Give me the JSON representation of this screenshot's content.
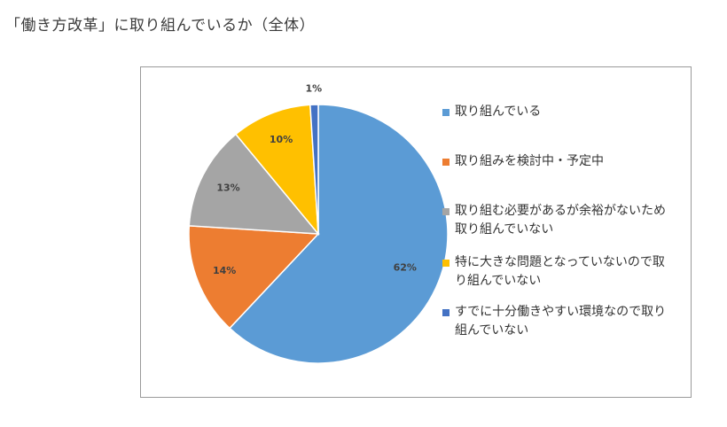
{
  "page": {
    "title": "「働き方改革」に取り組んでいるか（全体）"
  },
  "chart_data": {
    "type": "pie",
    "title": "",
    "categories": [
      "取り組んでいる",
      "取り組みを検討中・予定中",
      "取り組む必要があるが余裕がないため取り組んでいない",
      "特に大きな問題となっていないので取り組んでいない",
      "すでに十分働きやすい環境なので取り組んでいない"
    ],
    "values": [
      62,
      14,
      13,
      10,
      1
    ],
    "value_labels": [
      "62%",
      "14%",
      "13%",
      "10%",
      "1%"
    ],
    "colors": [
      "#5b9bd5",
      "#ed7d31",
      "#a5a5a5",
      "#ffc000",
      "#4472c4"
    ],
    "start_angle": "12 o'clock",
    "direction": "clockwise",
    "legend_position": "right"
  }
}
